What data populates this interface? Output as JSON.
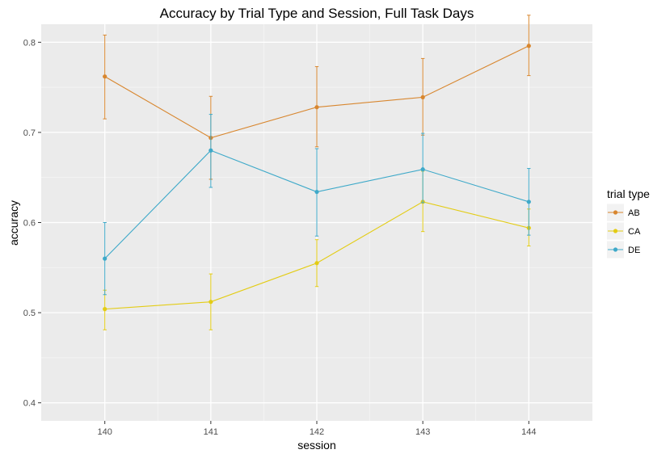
{
  "chart_data": {
    "type": "line",
    "title": "Accuracy by Trial Type and Session, Full Task Days",
    "xlabel": "session",
    "ylabel": "accuracy",
    "x": [
      "140",
      "141",
      "142",
      "143",
      "144"
    ],
    "xlim": [
      139.4,
      144.6
    ],
    "ylim": [
      0.38,
      0.82
    ],
    "yticks": [
      0.4,
      0.5,
      0.6,
      0.7,
      0.8
    ],
    "ytick_labels": [
      "0.4",
      "0.5",
      "0.6",
      "0.7",
      "0.8"
    ],
    "grid": true,
    "legend": {
      "title": "trial type",
      "position": "right"
    },
    "series": [
      {
        "name": "AB",
        "color": "#D8862E",
        "values": [
          0.762,
          0.694,
          0.728,
          0.739,
          0.796
        ],
        "err_low": [
          0.715,
          0.648,
          0.684,
          0.697,
          0.763
        ],
        "err_high": [
          0.808,
          0.74,
          0.773,
          0.782,
          0.83
        ]
      },
      {
        "name": "CA",
        "color": "#E3CC14",
        "values": [
          0.504,
          0.512,
          0.555,
          0.623,
          0.594
        ],
        "err_low": [
          0.481,
          0.481,
          0.529,
          0.59,
          0.574
        ],
        "err_high": [
          0.525,
          0.543,
          0.581,
          0.657,
          0.615
        ]
      },
      {
        "name": "DE",
        "color": "#3EA9C9",
        "values": [
          0.56,
          0.68,
          0.634,
          0.659,
          0.623
        ],
        "err_low": [
          0.52,
          0.639,
          0.585,
          0.622,
          0.586
        ],
        "err_high": [
          0.6,
          0.72,
          0.682,
          0.699,
          0.66
        ]
      }
    ]
  }
}
